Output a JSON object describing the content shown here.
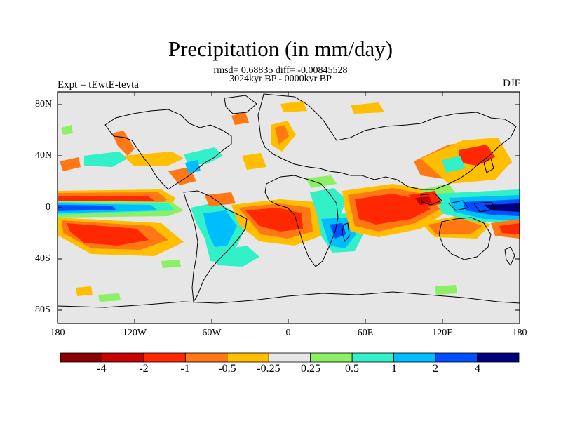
{
  "title": "Precipitation (in mm/day)",
  "stats": "rmsd= 0.68835 diff= -0.00845528",
  "period": "3024kyr BP - 0000kyr BP",
  "left_string": "Expt = tEwtE-tevta",
  "right_string": "DJF",
  "x_ticks": [
    "180",
    "120W",
    "60W",
    "0",
    "60E",
    "120E",
    "180"
  ],
  "y_ticks": [
    "80N",
    "40N",
    "0",
    "40S",
    "80S"
  ],
  "colorbar": {
    "colors": [
      "#8b0000",
      "#c80000",
      "#ff2800",
      "#ff7814",
      "#ffbe00",
      "#e6e6e6",
      "#8cf064",
      "#32f0c8",
      "#00beff",
      "#0050ff",
      "#00007d"
    ],
    "labels": [
      "-4",
      "-2",
      "-1",
      "-0.5",
      "-0.25",
      "0.25",
      "0.5",
      "1",
      "2",
      "4"
    ]
  },
  "land_color": "#e6e6e6"
}
